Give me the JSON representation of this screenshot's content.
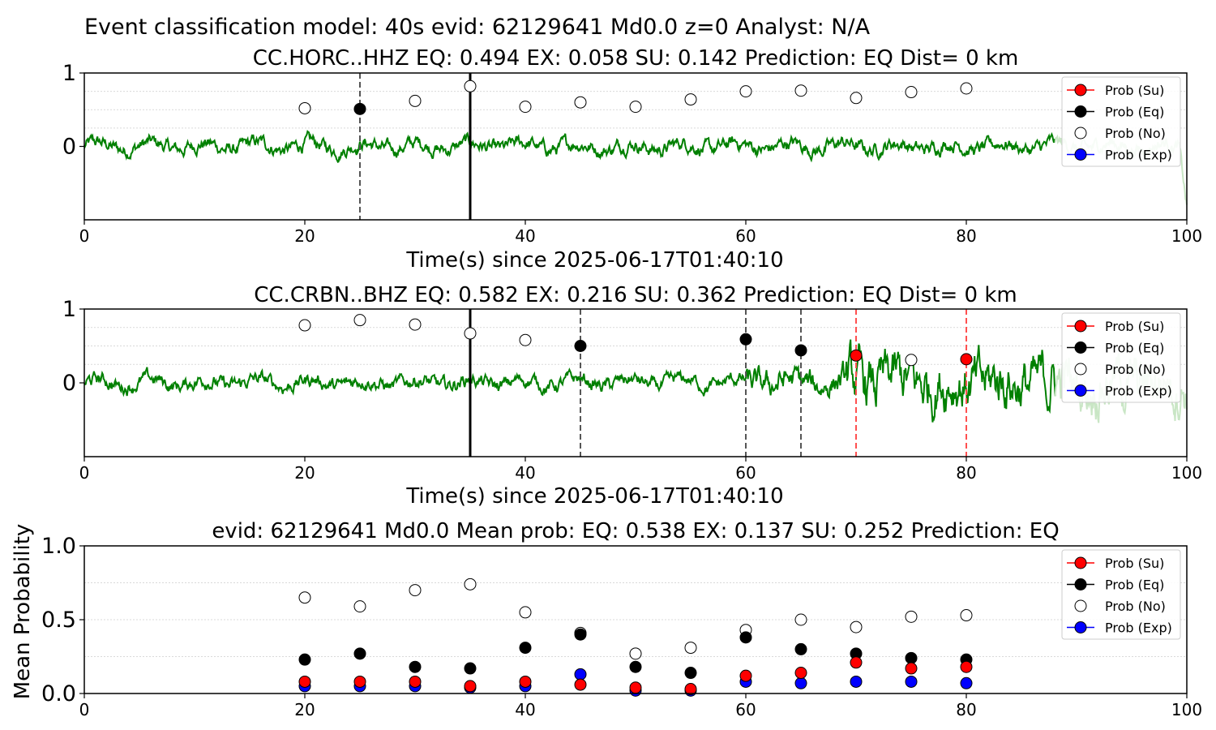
{
  "figure": {
    "suptitle": "Event classification model: 40s evid: 62129641 Md0.0 z=0 Analyst: N/A"
  },
  "legend_labels": [
    "Prob (Su)",
    "Prob (Eq)",
    "Prob (No)",
    "Prob (Exp)"
  ],
  "colors": {
    "su": "#ff0000",
    "eq": "#000000",
    "no": "#ffffff",
    "exp": "#0000ff",
    "waveform": "#008000",
    "waveform_faded": "#c9e6c5",
    "eq_line": "#000000",
    "su_line": "#ff5050"
  },
  "chart_data": [
    {
      "type": "scatter",
      "title": "CC.HORC..HHZ   EQ: 0.494  EX: 0.058  SU: 0.142   Prediction: EQ    Dist= 0 km",
      "xlabel": "Time(s) since 2025-06-17T01:40:10",
      "xlim": [
        0,
        100
      ],
      "ylim": [
        -1,
        1
      ],
      "xticks": [
        "0",
        "20",
        "40",
        "60",
        "80",
        "100"
      ],
      "yticks": [
        "0",
        "1"
      ],
      "grid": "horizontal dotted",
      "legend": "top-right",
      "background_trace": "waveform",
      "markers": [
        {
          "x": 20,
          "y": 0.52,
          "class": "No"
        },
        {
          "x": 25,
          "y": 0.51,
          "class": "Eq"
        },
        {
          "x": 30,
          "y": 0.62,
          "class": "No"
        },
        {
          "x": 35,
          "y": 0.82,
          "class": "No"
        },
        {
          "x": 40,
          "y": 0.54,
          "class": "No"
        },
        {
          "x": 45,
          "y": 0.6,
          "class": "No"
        },
        {
          "x": 50,
          "y": 0.54,
          "class": "No"
        },
        {
          "x": 55,
          "y": 0.64,
          "class": "No"
        },
        {
          "x": 60,
          "y": 0.75,
          "class": "No"
        },
        {
          "x": 65,
          "y": 0.76,
          "class": "No"
        },
        {
          "x": 70,
          "y": 0.66,
          "class": "No"
        },
        {
          "x": 75,
          "y": 0.74,
          "class": "No"
        },
        {
          "x": 80,
          "y": 0.79,
          "class": "No"
        }
      ],
      "solid_lines": [
        35
      ],
      "dashed_lines": [
        {
          "x": 25,
          "class": "Eq"
        }
      ]
    },
    {
      "type": "scatter",
      "title": "CC.CRBN..BHZ   EQ: 0.582  EX: 0.216  SU: 0.362   Prediction: EQ    Dist= 0 km",
      "xlabel": "Time(s) since 2025-06-17T01:40:10",
      "xlim": [
        0,
        100
      ],
      "ylim": [
        -1,
        1
      ],
      "xticks": [
        "0",
        "20",
        "40",
        "60",
        "80",
        "100"
      ],
      "yticks": [
        "0",
        "1"
      ],
      "grid": "horizontal dotted",
      "legend": "top-right",
      "background_trace": "waveform",
      "markers": [
        {
          "x": 20,
          "y": 0.78,
          "class": "No"
        },
        {
          "x": 25,
          "y": 0.85,
          "class": "No"
        },
        {
          "x": 30,
          "y": 0.79,
          "class": "No"
        },
        {
          "x": 35,
          "y": 0.67,
          "class": "No"
        },
        {
          "x": 40,
          "y": 0.58,
          "class": "No"
        },
        {
          "x": 45,
          "y": 0.5,
          "class": "Eq"
        },
        {
          "x": 60,
          "y": 0.59,
          "class": "Eq"
        },
        {
          "x": 65,
          "y": 0.44,
          "class": "Eq"
        },
        {
          "x": 70,
          "y": 0.37,
          "class": "Su"
        },
        {
          "x": 75,
          "y": 0.31,
          "class": "No"
        },
        {
          "x": 80,
          "y": 0.32,
          "class": "Su"
        }
      ],
      "solid_lines": [
        35
      ],
      "dashed_lines": [
        {
          "x": 45,
          "class": "Eq"
        },
        {
          "x": 60,
          "class": "Eq"
        },
        {
          "x": 65,
          "class": "Eq"
        },
        {
          "x": 70,
          "class": "Su"
        },
        {
          "x": 80,
          "class": "Su"
        }
      ]
    },
    {
      "type": "scatter",
      "title": "evid: 62129641  Md0.0   Mean prob:   EQ: 0.538  EX: 0.137  SU: 0.252   Prediction: EQ",
      "xlabel": "",
      "ylabel": "Mean Probability",
      "xlim": [
        0,
        100
      ],
      "ylim": [
        0,
        1
      ],
      "xticks": [
        "0",
        "20",
        "40",
        "60",
        "80",
        "100"
      ],
      "yticks": [
        "0.0",
        "0.5",
        "1.0"
      ],
      "grid": "horizontal dotted",
      "legend": "top-right",
      "x": [
        20,
        25,
        30,
        35,
        40,
        45,
        50,
        55,
        60,
        65,
        70,
        75,
        80
      ],
      "series": [
        {
          "name": "Prob (No)",
          "key": "no",
          "values": [
            0.65,
            0.59,
            0.7,
            0.74,
            0.55,
            0.41,
            0.27,
            0.31,
            0.43,
            0.5,
            0.45,
            0.52,
            0.53
          ]
        },
        {
          "name": "Prob (Eq)",
          "key": "eq",
          "values": [
            0.23,
            0.27,
            0.18,
            0.17,
            0.31,
            0.4,
            0.18,
            0.14,
            0.38,
            0.3,
            0.27,
            0.24,
            0.23
          ]
        },
        {
          "name": "Prob (Exp)",
          "key": "exp",
          "values": [
            0.05,
            0.05,
            0.05,
            0.04,
            0.05,
            0.13,
            0.02,
            0.02,
            0.08,
            0.07,
            0.08,
            0.08,
            0.07
          ]
        },
        {
          "name": "Prob (Su)",
          "key": "su",
          "values": [
            0.08,
            0.08,
            0.08,
            0.05,
            0.08,
            0.06,
            0.04,
            0.03,
            0.12,
            0.14,
            0.21,
            0.17,
            0.18
          ]
        }
      ]
    }
  ]
}
